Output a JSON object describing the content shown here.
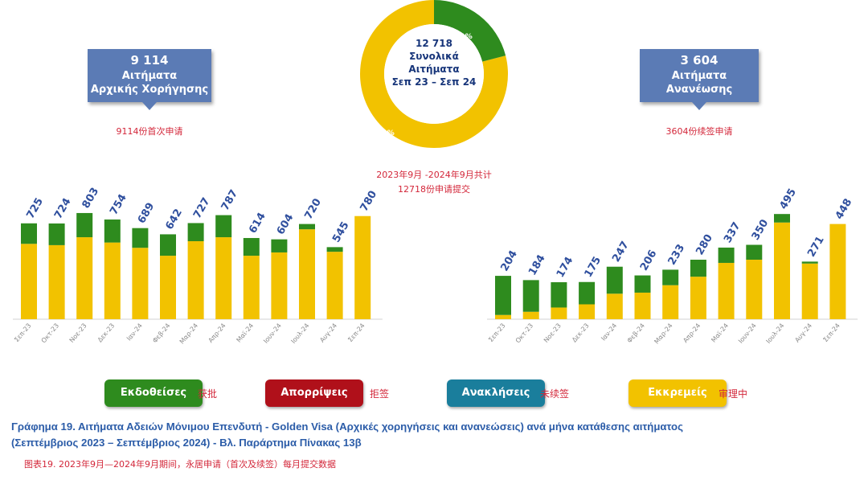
{
  "left_box": {
    "count": "9 114",
    "line1": "Αιτήματα",
    "line2": "Αρχικής Χορήγησης"
  },
  "left_note": "9114份首次申请",
  "right_box": {
    "count": "3 604",
    "line1": "Αιτήματα",
    "line2": "Ανανέωσης"
  },
  "right_note": "3604份续签申请",
  "donut": {
    "total": "12 718",
    "line1": "Συνολικά",
    "line2": "Αιτήματα",
    "line3": "Σεπ 23 – Σεπ 24",
    "green_pct_label": "21%",
    "yellow_pct_label": "79%",
    "note_line1": "2023年9月 -2024年9月共计",
    "note_line2": "12718份申请提交"
  },
  "legend": [
    {
      "label": "Εκδοθείσες",
      "cn": "获批",
      "color": "#2e8b1e"
    },
    {
      "label": "Απορρίψεις",
      "cn": "拒签",
      "color": "#b0101a"
    },
    {
      "label": "Ανακλήσεις",
      "cn": "未续签",
      "color": "#1a7e9c"
    },
    {
      "label": "Εκκρεμείς",
      "cn": "审理中",
      "color": "#f2c200"
    }
  ],
  "colors": {
    "issued": "#2e8b1e",
    "pending": "#f2c200",
    "total_label": "#2f4f9e"
  },
  "caption_line1": "Γράφημα 19. Αιτήματα Αδειών Μόνιμου Επενδυτή - Golden Visa (Αρχικές χορηγήσεις και ανανεώσεις) ανά μήνα κατάθεσης αιτήματος",
  "caption_line2": "(Σεπτέμβριος 2023 – Σεπτέμβριος 2024) - Βλ. Παράρτημα Πίνακας 13β",
  "caption_cn": "图表19.  2023年9月—2024年9月期间，永居申请（首次及续签）每月提交数据",
  "chart_data": [
    {
      "type": "bar",
      "categories": [
        "Σεπ-23",
        "Οκτ-23",
        "Νοε-23",
        "Δεκ-23",
        "Ιαν-24",
        "Φεβ-24",
        "Μαρ-24",
        "Απρ-24",
        "Μαϊ-24",
        "Ιουν-24",
        "Ιουλ-24",
        "Αυγ-24",
        "Σεπ-24"
      ],
      "totals": [
        725,
        724,
        803,
        754,
        689,
        642,
        727,
        787,
        614,
        604,
        720,
        545,
        780
      ],
      "series": [
        {
          "name": "Εκκρεμείς",
          "values": [
            570,
            560,
            620,
            580,
            540,
            480,
            590,
            620,
            480,
            505,
            680,
            510,
            780
          ]
        },
        {
          "name": "Εκδοθείσες",
          "values": [
            155,
            164,
            183,
            174,
            149,
            162,
            137,
            167,
            134,
            99,
            40,
            35,
            0
          ]
        }
      ],
      "stacked": true,
      "ylim": [
        0,
        900
      ]
    },
    {
      "type": "bar",
      "categories": [
        "Σεπ-23",
        "Οκτ-23",
        "Νοε-23",
        "Δεκ-23",
        "Ιαν-24",
        "Φεβ-24",
        "Μαρ-24",
        "Απρ-24",
        "Μαϊ-24",
        "Ιουν-24",
        "Ιουλ-24",
        "Αυγ-24",
        "Σεπ-24"
      ],
      "totals": [
        204,
        184,
        174,
        175,
        247,
        206,
        233,
        280,
        337,
        350,
        495,
        271,
        448
      ],
      "series": [
        {
          "name": "Εκκρεμείς",
          "values": [
            20,
            35,
            55,
            70,
            120,
            125,
            160,
            200,
            265,
            280,
            455,
            262,
            448
          ]
        },
        {
          "name": "Εκδοθείσες",
          "values": [
            184,
            149,
            119,
            105,
            127,
            81,
            73,
            80,
            72,
            70,
            40,
            9,
            0
          ]
        }
      ],
      "stacked": true,
      "ylim": [
        0,
        560
      ]
    }
  ]
}
